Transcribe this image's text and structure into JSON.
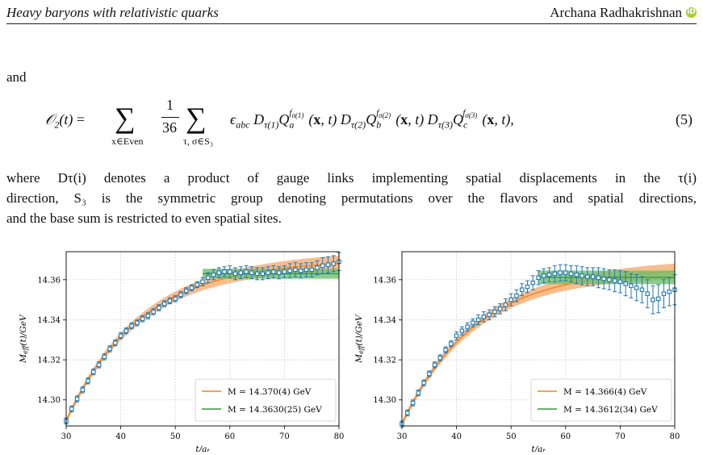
{
  "header": {
    "title": "Heavy baryons with relativistic quarks",
    "author": "Archana Radhakrishnan",
    "orcid_icon": "orcid-icon",
    "orcid_color": "#a6ce39"
  },
  "text_and": "and",
  "equation": {
    "lhs": "O₂(t) =",
    "sum1_sub": "x∈Even",
    "frac_num": "1",
    "frac_den": "36",
    "sum2_sub": "τ, σ∈S₃",
    "body": "ϵabc Dτ(1)Q^{fσ(1)}_a(x, t) Dτ(2)Q^{fσ(2)}_b(x, t) Dτ(3)Q^{fσ(3)}_c(x, t),",
    "number": "(5)"
  },
  "paragraph": {
    "line1": "where Dτ(i) denotes a product of gauge links implementing spatial displacements in the τ(i)",
    "line2": "direction, S₃ is the symmetric group denoting permutations over the flavors and spatial directions,",
    "line3": "and the base sum is restricted to even spatial sites."
  },
  "colors": {
    "data_points": "#1f77b4",
    "fit1": "#ff7f0e",
    "fit1_band": "#f7b27a",
    "fit2": "#2ca02c",
    "fit2_band": "#6fbf6f"
  },
  "chart_data": [
    {
      "type": "scatter",
      "xlabel": "t/a_t",
      "ylabel": "M_eff(t)/GeV",
      "xlim": [
        30,
        80
      ],
      "ylim": [
        14.287,
        14.374
      ],
      "xticks": [
        30,
        40,
        50,
        60,
        70,
        80
      ],
      "yticks": [
        14.3,
        14.32,
        14.34,
        14.36
      ],
      "grid": true,
      "legend_position": "bottom-right",
      "legend": [
        "M = 14.370(4) GeV",
        "M = 14.3630(25) GeV"
      ],
      "fits": [
        {
          "label": "M = 14.370(4) GeV",
          "color": "#ff7f0e",
          "M": 14.37,
          "x_range": [
            30,
            80
          ],
          "band_halfwidth": 0.004
        },
        {
          "label": "M = 14.3630(25) GeV",
          "color": "#2ca02c",
          "M": 14.363,
          "x_range": [
            55,
            80
          ],
          "band_halfwidth": 0.0025
        }
      ],
      "points": [
        [
          30,
          14.2895,
          0.0015
        ],
        [
          31,
          14.2955,
          0.0015
        ],
        [
          32,
          14.3005,
          0.0015
        ],
        [
          33,
          14.305,
          0.0015
        ],
        [
          34,
          14.3095,
          0.0015
        ],
        [
          35,
          14.314,
          0.0015
        ],
        [
          36,
          14.3175,
          0.0015
        ],
        [
          37,
          14.3215,
          0.0015
        ],
        [
          38,
          14.3255,
          0.0015
        ],
        [
          39,
          14.3285,
          0.0015
        ],
        [
          40,
          14.332,
          0.0015
        ],
        [
          41,
          14.3345,
          0.0015
        ],
        [
          42,
          14.337,
          0.0015
        ],
        [
          43,
          14.3385,
          0.0015
        ],
        [
          44,
          14.3405,
          0.0015
        ],
        [
          45,
          14.342,
          0.0015
        ],
        [
          46,
          14.344,
          0.0015
        ],
        [
          47,
          14.346,
          0.0015
        ],
        [
          48,
          14.348,
          0.0015
        ],
        [
          49,
          14.3495,
          0.0015
        ],
        [
          50,
          14.3505,
          0.0015
        ],
        [
          51,
          14.3525,
          0.0015
        ],
        [
          52,
          14.3545,
          0.0015
        ],
        [
          53,
          14.356,
          0.0015
        ],
        [
          54,
          14.3575,
          0.0015
        ],
        [
          55,
          14.359,
          0.002
        ],
        [
          56,
          14.361,
          0.0025
        ],
        [
          57,
          14.3625,
          0.0025
        ],
        [
          58,
          14.3635,
          0.0025
        ],
        [
          59,
          14.364,
          0.0025
        ],
        [
          60,
          14.364,
          0.003
        ],
        [
          61,
          14.363,
          0.003
        ],
        [
          62,
          14.3635,
          0.003
        ],
        [
          63,
          14.364,
          0.003
        ],
        [
          64,
          14.3635,
          0.003
        ],
        [
          65,
          14.363,
          0.003
        ],
        [
          66,
          14.363,
          0.003
        ],
        [
          67,
          14.3635,
          0.003
        ],
        [
          68,
          14.364,
          0.003
        ],
        [
          69,
          14.3635,
          0.003
        ],
        [
          70,
          14.364,
          0.003
        ],
        [
          71,
          14.3645,
          0.0035
        ],
        [
          72,
          14.365,
          0.0035
        ],
        [
          73,
          14.3645,
          0.0035
        ],
        [
          74,
          14.365,
          0.0035
        ],
        [
          75,
          14.365,
          0.0035
        ],
        [
          76,
          14.366,
          0.0035
        ],
        [
          77,
          14.367,
          0.004
        ],
        [
          78,
          14.3675,
          0.004
        ],
        [
          79,
          14.368,
          0.004
        ],
        [
          80,
          14.369,
          0.0045
        ]
      ]
    },
    {
      "type": "scatter",
      "xlabel": "t/a_t",
      "ylabel": "M_eff(t)/GeV",
      "xlim": [
        30,
        80
      ],
      "ylim": [
        14.287,
        14.374
      ],
      "xticks": [
        30,
        40,
        50,
        60,
        70,
        80
      ],
      "yticks": [
        14.3,
        14.32,
        14.34,
        14.36
      ],
      "grid": true,
      "legend_position": "bottom-right",
      "legend": [
        "M = 14.366(4) GeV",
        "M = 14.3612(34) GeV"
      ],
      "fits": [
        {
          "label": "M = 14.366(4) GeV",
          "color": "#ff7f0e",
          "M": 14.366,
          "x_range": [
            30,
            80
          ],
          "band_halfwidth": 0.004
        },
        {
          "label": "M = 14.3612(34) GeV",
          "color": "#2ca02c",
          "M": 14.3612,
          "x_range": [
            55,
            80
          ],
          "band_halfwidth": 0.0034
        }
      ],
      "points": [
        [
          30,
          14.288,
          0.0015
        ],
        [
          31,
          14.2935,
          0.0015
        ],
        [
          32,
          14.2985,
          0.0015
        ],
        [
          33,
          14.3035,
          0.0015
        ],
        [
          34,
          14.3085,
          0.0015
        ],
        [
          35,
          14.313,
          0.0015
        ],
        [
          36,
          14.3175,
          0.0015
        ],
        [
          37,
          14.321,
          0.0015
        ],
        [
          38,
          14.325,
          0.0015
        ],
        [
          39,
          14.328,
          0.0015
        ],
        [
          40,
          14.332,
          0.002
        ],
        [
          41,
          14.3345,
          0.002
        ],
        [
          42,
          14.3365,
          0.002
        ],
        [
          43,
          14.3385,
          0.002
        ],
        [
          44,
          14.34,
          0.0025
        ],
        [
          45,
          14.3415,
          0.0025
        ],
        [
          46,
          14.3425,
          0.0025
        ],
        [
          47,
          14.344,
          0.0025
        ],
        [
          48,
          14.3455,
          0.0025
        ],
        [
          49,
          14.3475,
          0.003
        ],
        [
          50,
          14.35,
          0.003
        ],
        [
          51,
          14.352,
          0.003
        ],
        [
          52,
          14.355,
          0.003
        ],
        [
          53,
          14.3565,
          0.003
        ],
        [
          54,
          14.3585,
          0.0035
        ],
        [
          55,
          14.361,
          0.0035
        ],
        [
          56,
          14.362,
          0.0035
        ],
        [
          57,
          14.3625,
          0.0035
        ],
        [
          58,
          14.363,
          0.004
        ],
        [
          59,
          14.3635,
          0.004
        ],
        [
          60,
          14.3635,
          0.004
        ],
        [
          61,
          14.363,
          0.004
        ],
        [
          62,
          14.3625,
          0.0045
        ],
        [
          63,
          14.362,
          0.0045
        ],
        [
          64,
          14.3615,
          0.0045
        ],
        [
          65,
          14.3615,
          0.0045
        ],
        [
          66,
          14.361,
          0.005
        ],
        [
          67,
          14.3605,
          0.005
        ],
        [
          68,
          14.36,
          0.005
        ],
        [
          69,
          14.3595,
          0.0055
        ],
        [
          70,
          14.359,
          0.0055
        ],
        [
          71,
          14.358,
          0.006
        ],
        [
          72,
          14.357,
          0.006
        ],
        [
          73,
          14.356,
          0.0065
        ],
        [
          74,
          14.355,
          0.0065
        ],
        [
          75,
          14.353,
          0.007
        ],
        [
          76,
          14.35,
          0.007
        ],
        [
          77,
          14.3505,
          0.007
        ],
        [
          78,
          14.353,
          0.007
        ],
        [
          79,
          14.354,
          0.007
        ],
        [
          80,
          14.355,
          0.0075
        ]
      ]
    }
  ]
}
